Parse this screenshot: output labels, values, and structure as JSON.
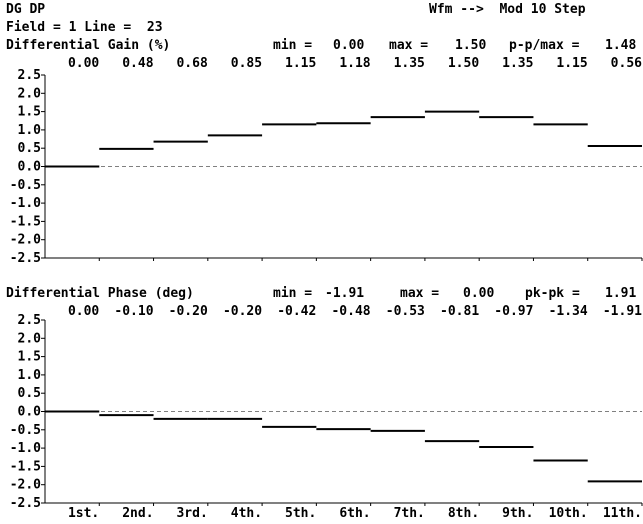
{
  "header": {
    "line1_left": "DG DP",
    "line1_right": "Wfm -->  Mod 10 Step",
    "line2": "Field = 1 Line =  23"
  },
  "colors": {
    "background": "#ffffff",
    "trace": "#000000",
    "zero_line": "#808080"
  },
  "chart_data": [
    {
      "type": "line",
      "step": true,
      "title": "Differential Gain (%)",
      "stats": [
        {
          "label": "min =",
          "value": "0.00"
        },
        {
          "label": "max =",
          "value": "1.50"
        },
        {
          "label": "p-p/max =",
          "value": "1.48"
        }
      ],
      "value_labels": [
        "0.00",
        "0.48",
        "0.68",
        "0.85",
        "1.15",
        "1.18",
        "1.35",
        "1.50",
        "1.35",
        "1.15",
        "0.56"
      ],
      "categories": [
        "1st.",
        "2nd.",
        "3rd.",
        "4th.",
        "5th.",
        "6th.",
        "7th.",
        "8th.",
        "9th.",
        "10th.",
        "11th."
      ],
      "values": [
        0.0,
        0.48,
        0.68,
        0.85,
        1.15,
        1.18,
        1.35,
        1.5,
        1.35,
        1.15,
        0.56
      ],
      "ylim": [
        -2.5,
        2.5
      ],
      "yticks": [
        "2.5",
        "2.0",
        "1.5",
        "1.0",
        "0.5",
        "0.0",
        "-0.5",
        "-1.0",
        "-1.5",
        "-2.0",
        "-2.5"
      ],
      "zero_line": "dashed",
      "grid": false
    },
    {
      "type": "line",
      "step": true,
      "title": "Differential Phase (deg)",
      "stats": [
        {
          "label": "min =",
          "value": "-1.91"
        },
        {
          "label": "max =",
          "value": "0.00"
        },
        {
          "label": "pk-pk =",
          "value": "1.91"
        }
      ],
      "value_labels": [
        "0.00",
        "-0.10",
        "-0.20",
        "-0.20",
        "-0.42",
        "-0.48",
        "-0.53",
        "-0.81",
        "-0.97",
        "-1.34",
        "-1.91"
      ],
      "categories": [
        "1st.",
        "2nd.",
        "3rd.",
        "4th.",
        "5th.",
        "6th.",
        "7th.",
        "8th.",
        "9th.",
        "10th.",
        "11th."
      ],
      "values": [
        0.0,
        -0.1,
        -0.2,
        -0.2,
        -0.42,
        -0.48,
        -0.53,
        -0.81,
        -0.97,
        -1.34,
        -1.91
      ],
      "ylim": [
        -2.5,
        2.5
      ],
      "yticks": [
        "2.5",
        "2.0",
        "1.5",
        "1.0",
        "0.5",
        "0.0",
        "-0.5",
        "-1.0",
        "-1.5",
        "-2.0",
        "-2.5"
      ],
      "zero_line": "dashed",
      "grid": false
    }
  ]
}
